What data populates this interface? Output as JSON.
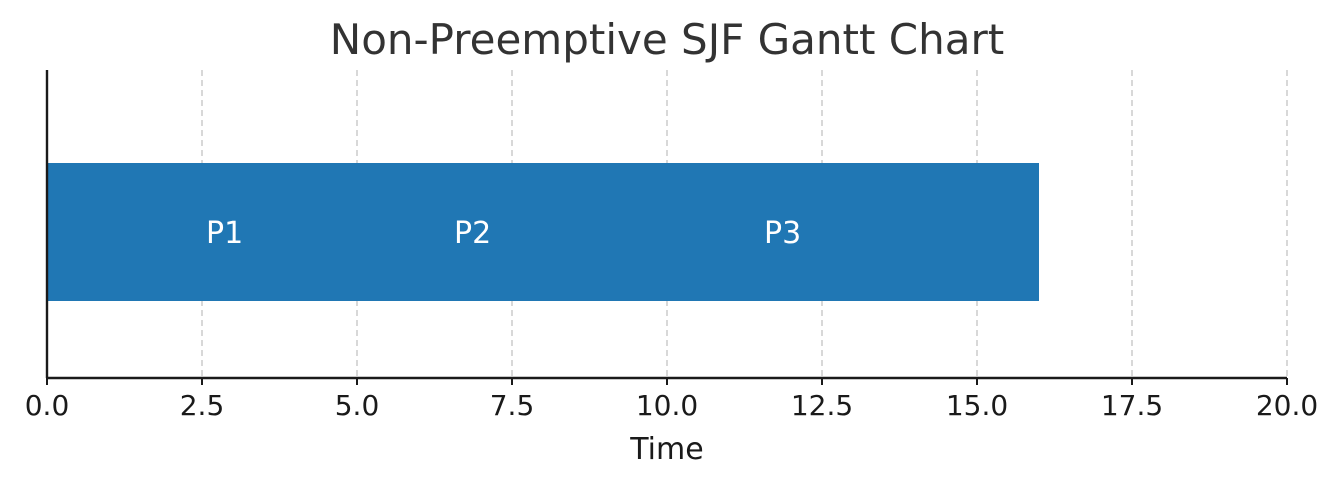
{
  "chart_data": {
    "type": "bar",
    "orientation": "horizontal",
    "title": "Non-Preemptive SJF Gantt Chart",
    "xlabel": "Time",
    "ylabel": "",
    "xlim": [
      0,
      20
    ],
    "xticks": [
      "0.0",
      "2.5",
      "5.0",
      "7.5",
      "10.0",
      "12.5",
      "15.0",
      "17.5",
      "20.0"
    ],
    "grid": "vertical dashed",
    "bar_color": "#2077b4",
    "segments": [
      {
        "label": "P1",
        "start": 0,
        "end": 16
      }
    ],
    "annotations": [
      {
        "text": "P1",
        "x": 2.5
      },
      {
        "text": "P2",
        "x": 6.5
      },
      {
        "text": "P3",
        "x": 11.5
      }
    ]
  }
}
